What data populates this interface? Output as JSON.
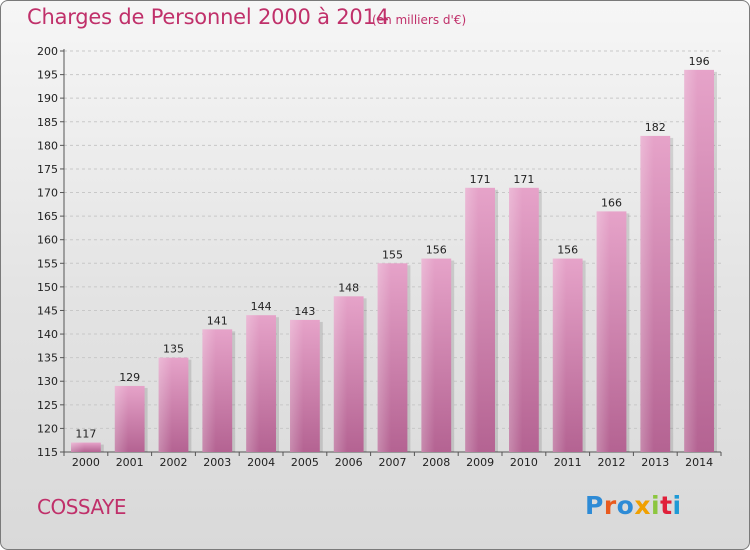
{
  "header": {
    "title": "Charges de Personnel 2000 à 2014",
    "subtitle": "(en milliers d'€)"
  },
  "footer": {
    "commune": "COSSAYE",
    "logo_text": "Proxiti",
    "logo_colors": [
      "#2e8bd6",
      "#e85a1e",
      "#2e8bd6",
      "#f0a000",
      "#8cc63f",
      "#e0203a",
      "#1e9ad6"
    ]
  },
  "colors": {
    "bar": "#d98ab8",
    "bar_light": "#e9a6cc",
    "bar_dark": "#b56393",
    "accent": "#c0306a"
  },
  "chart_data": {
    "type": "bar",
    "categories": [
      "2000",
      "2001",
      "2002",
      "2003",
      "2004",
      "2005",
      "2006",
      "2007",
      "2008",
      "2009",
      "2010",
      "2011",
      "2012",
      "2013",
      "2014"
    ],
    "values": [
      117,
      129,
      135,
      141,
      144,
      143,
      148,
      155,
      156,
      171,
      171,
      156,
      166,
      182,
      196
    ],
    "ylim": [
      115,
      200
    ],
    "yticks": [
      115,
      120,
      125,
      130,
      135,
      140,
      145,
      150,
      155,
      160,
      165,
      170,
      175,
      180,
      185,
      190,
      195,
      200
    ],
    "xlabel": "",
    "ylabel": "",
    "grid": true,
    "data_labels": true
  }
}
